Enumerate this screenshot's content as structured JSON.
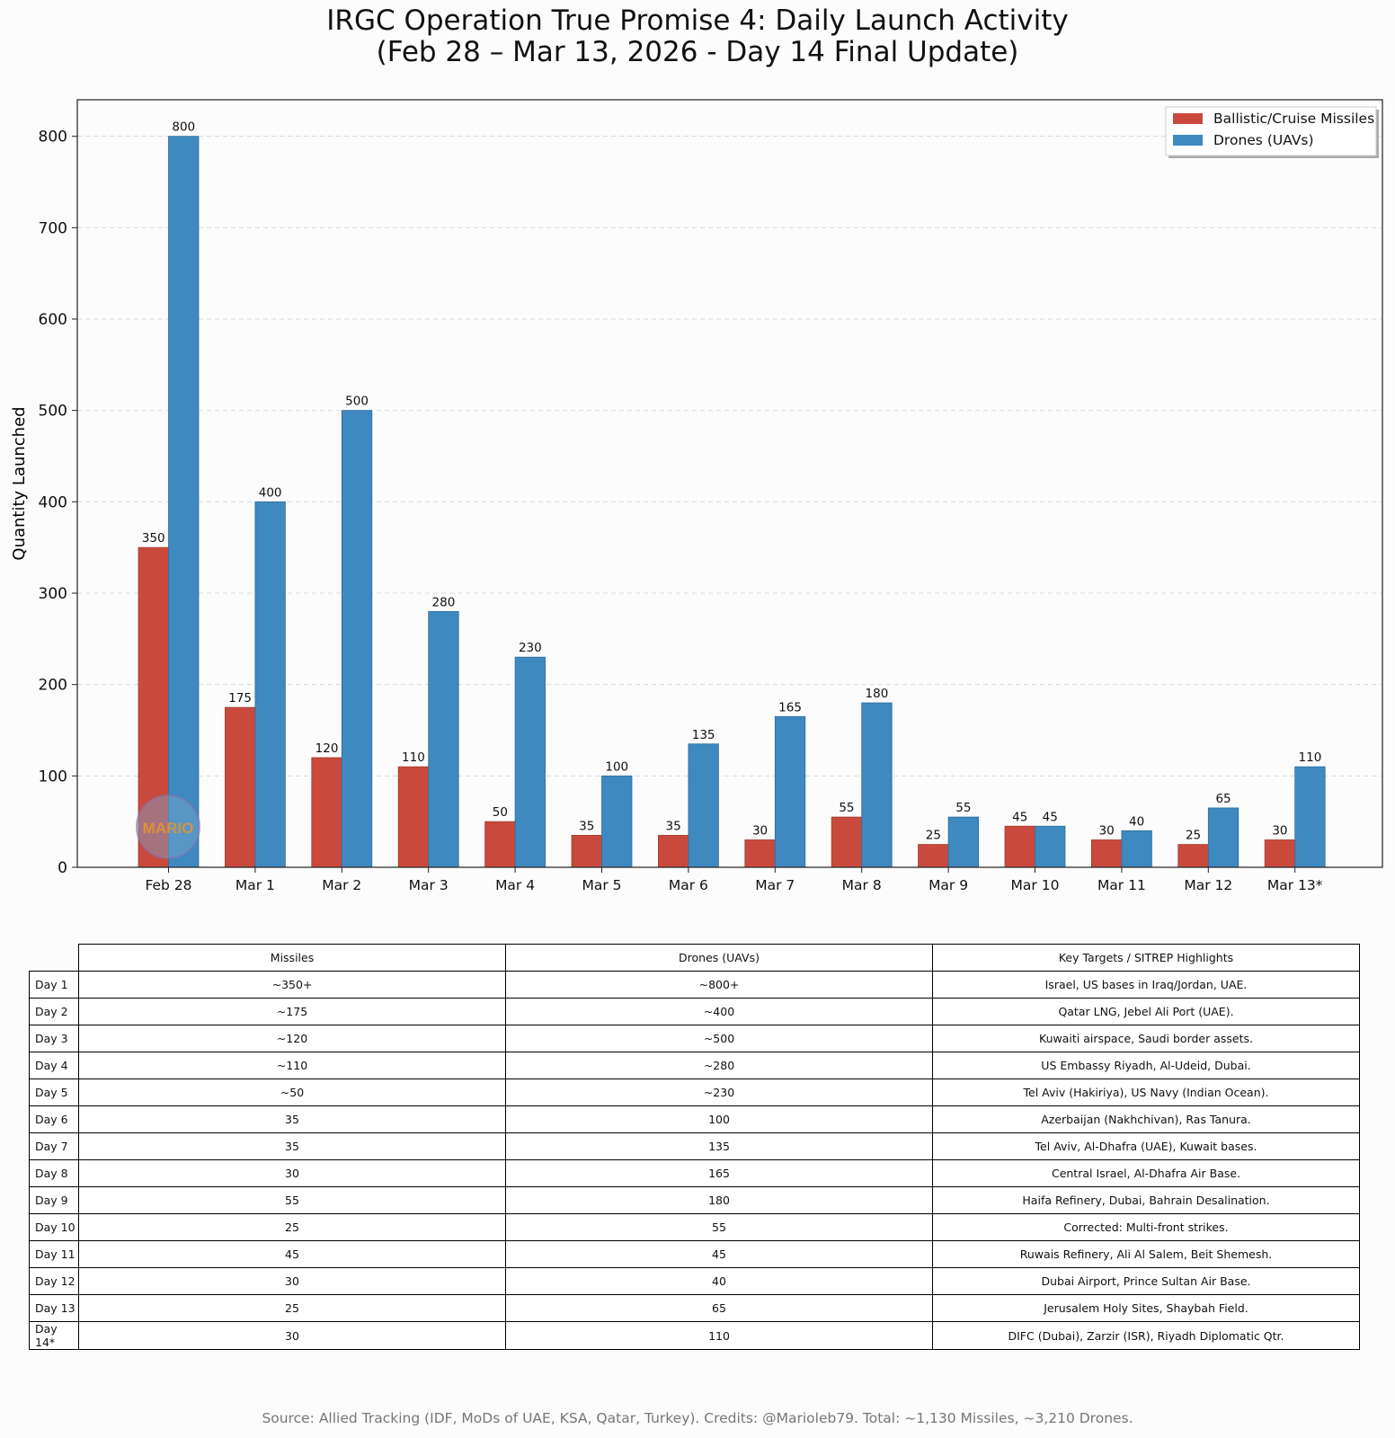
{
  "title": "IRGC Operation True Promise 4: Daily Launch Activity",
  "subtitle": "(Feb 28 – Mar 13, 2026 - Day 14 Final Update)",
  "watermark": "MARIO",
  "colors": {
    "missiles": "#c94a3d",
    "drones": "#3d89c0"
  },
  "chart_data": {
    "type": "bar",
    "title": "IRGC Operation True Promise 4: Daily Launch Activity",
    "subtitle": "(Feb 28 – Mar 13, 2026 - Day 14 Final Update)",
    "xlabel": "",
    "ylabel": "Quantity Launched",
    "ylim": [
      0,
      840
    ],
    "yticks": [
      0,
      100,
      200,
      300,
      400,
      500,
      600,
      700,
      800
    ],
    "grid": "horizontal dashed",
    "legend_position": "top-right",
    "categories": [
      "Feb 28",
      "Mar 1",
      "Mar 2",
      "Mar 3",
      "Mar 4",
      "Mar 5",
      "Mar 6",
      "Mar 7",
      "Mar 8",
      "Mar 9",
      "Mar 10",
      "Mar 11",
      "Mar 12",
      "Mar 13*"
    ],
    "series": [
      {
        "name": "Ballistic/Cruise Missiles",
        "values": [
          350,
          175,
          120,
          110,
          50,
          35,
          35,
          30,
          55,
          25,
          45,
          30,
          25,
          30
        ]
      },
      {
        "name": "Drones (UAVs)",
        "values": [
          800,
          400,
          500,
          280,
          230,
          100,
          135,
          165,
          180,
          55,
          45,
          40,
          65,
          110
        ]
      }
    ]
  },
  "table": {
    "headers": [
      "Missiles",
      "Drones (UAVs)",
      "Key Targets / SITREP Highlights"
    ],
    "rows": [
      {
        "label": "Day 1",
        "missiles": "~350+",
        "drones": "~800+",
        "targets": "Israel, US bases in Iraq/Jordan, UAE."
      },
      {
        "label": "Day 2",
        "missiles": "~175",
        "drones": "~400",
        "targets": "Qatar LNG, Jebel Ali Port (UAE)."
      },
      {
        "label": "Day 3",
        "missiles": "~120",
        "drones": "~500",
        "targets": "Kuwaiti airspace, Saudi border assets."
      },
      {
        "label": "Day 4",
        "missiles": "~110",
        "drones": "~280",
        "targets": "US Embassy Riyadh, Al-Udeid, Dubai."
      },
      {
        "label": "Day 5",
        "missiles": "~50",
        "drones": "~230",
        "targets": "Tel Aviv (Hakiriya), US Navy (Indian Ocean)."
      },
      {
        "label": "Day 6",
        "missiles": "35",
        "drones": "100",
        "targets": "Azerbaijan (Nakhchivan), Ras Tanura."
      },
      {
        "label": "Day 7",
        "missiles": "35",
        "drones": "135",
        "targets": "Tel Aviv, Al-Dhafra (UAE), Kuwait bases."
      },
      {
        "label": "Day 8",
        "missiles": "30",
        "drones": "165",
        "targets": "Central Israel, Al-Dhafra Air Base."
      },
      {
        "label": "Day 9",
        "missiles": "55",
        "drones": "180",
        "targets": "Haifa Refinery, Dubai, Bahrain Desalination."
      },
      {
        "label": "Day 10",
        "missiles": "25",
        "drones": "55",
        "targets": "Corrected: Multi-front strikes."
      },
      {
        "label": "Day 11",
        "missiles": "45",
        "drones": "45",
        "targets": "Ruwais Refinery, Ali Al Salem, Beit Shemesh."
      },
      {
        "label": "Day 12",
        "missiles": "30",
        "drones": "40",
        "targets": "Dubai Airport, Prince Sultan Air Base."
      },
      {
        "label": "Day 13",
        "missiles": "25",
        "drones": "65",
        "targets": "Jerusalem Holy Sites, Shaybah Field."
      },
      {
        "label": "Day 14*",
        "missiles": "30",
        "drones": "110",
        "targets": "DIFC (Dubai), Zarzir (ISR), Riyadh Diplomatic Qtr."
      }
    ]
  },
  "source": "Source: Allied Tracking (IDF, MoDs of UAE, KSA, Qatar, Turkey). Credits: @Marioleb79. Total: ~1,130 Missiles, ~3,210 Drones."
}
